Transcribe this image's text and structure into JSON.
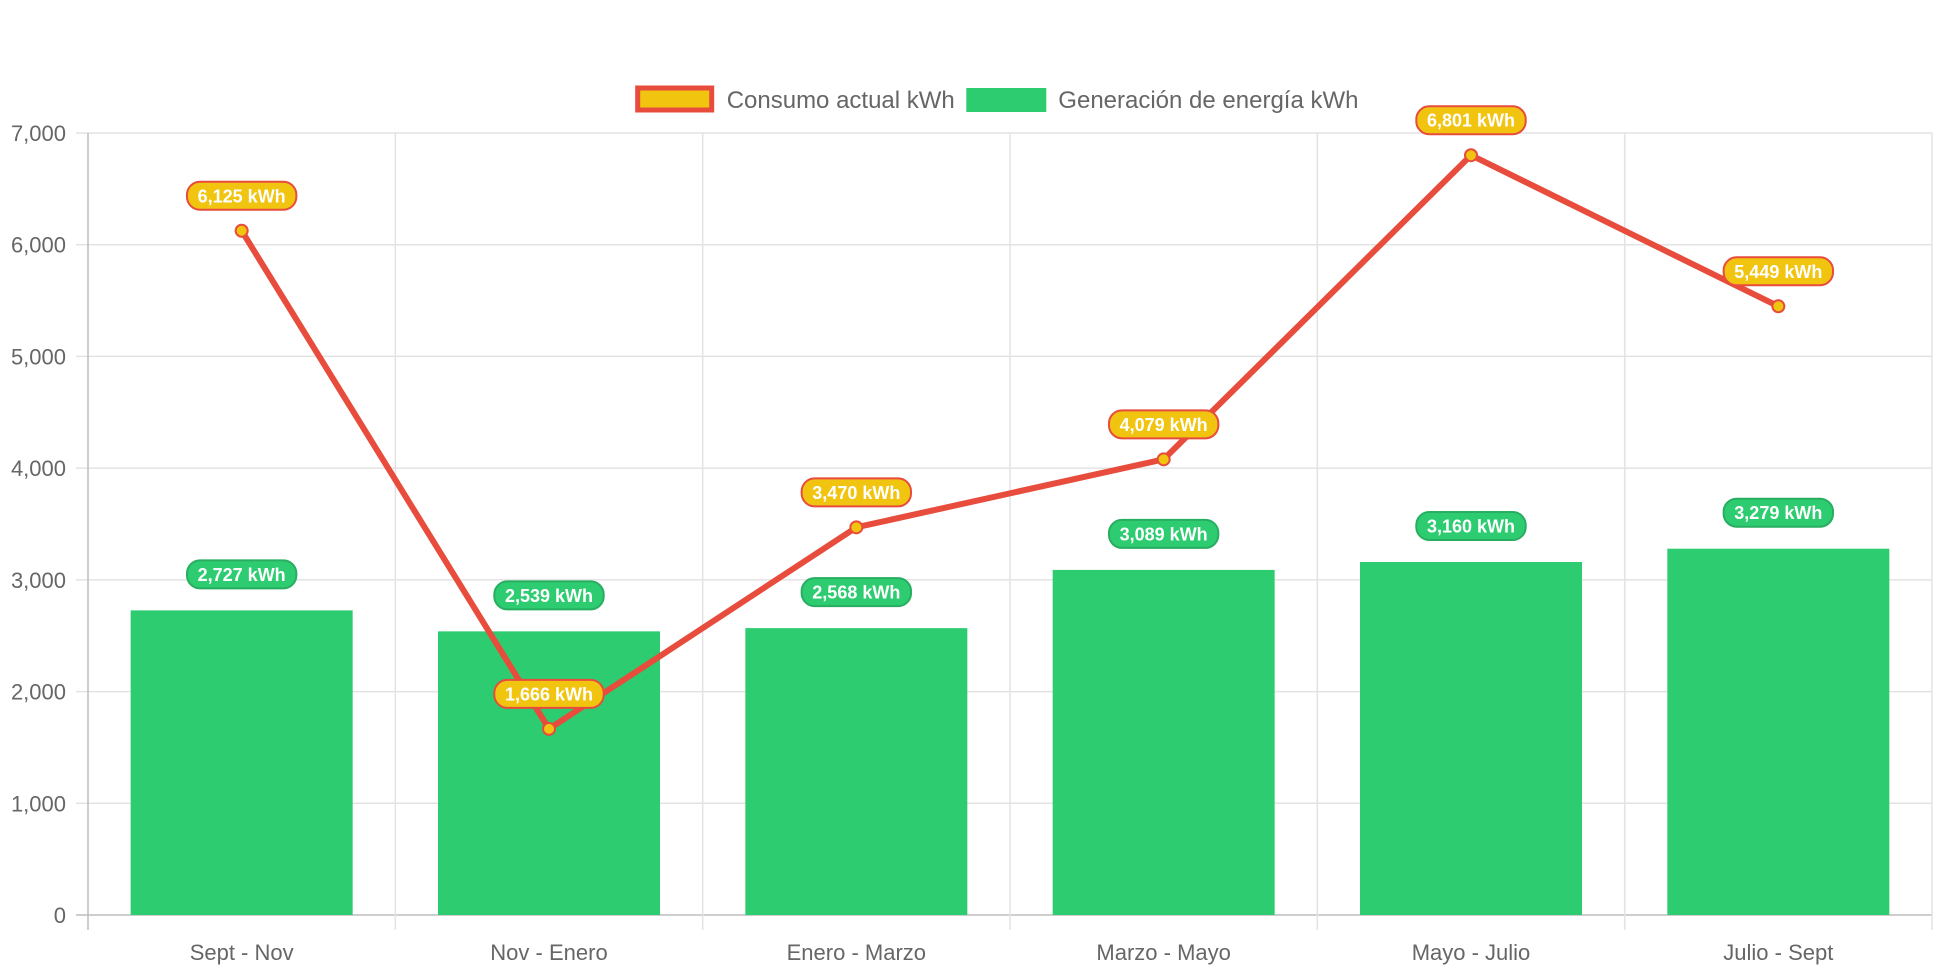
{
  "chart_data": {
    "type": "bar",
    "title": "",
    "xlabel": "",
    "ylabel": "",
    "categories": [
      "Sept - Nov",
      "Nov - Enero",
      "Enero - Marzo",
      "Marzo - Mayo",
      "Mayo - Julio",
      "Julio - Sept"
    ],
    "ylim": [
      0,
      7000
    ],
    "yticks": [
      0,
      1000,
      2000,
      3000,
      4000,
      5000,
      6000,
      7000
    ],
    "ytick_labels": [
      "0",
      "1,000",
      "2,000",
      "3,000",
      "4,000",
      "5,000",
      "6,000",
      "7,000"
    ],
    "grid": true,
    "legend_position": "top",
    "series": [
      {
        "name": "Consumo actual kWh",
        "type": "line",
        "values": [
          6125,
          1666,
          3470,
          4079,
          6801,
          5449
        ],
        "labels": [
          "6,125 kWh",
          "1,666 kWh",
          "3,470 kWh",
          "4,079 kWh",
          "6,801 kWh",
          "5,449 kWh"
        ],
        "line_color": "#e74c3c",
        "fill_color": "#f1c40f"
      },
      {
        "name": "Generación de energía kWh",
        "type": "bar",
        "values": [
          2727,
          2539,
          2568,
          3089,
          3160,
          3279
        ],
        "labels": [
          "2,727 kWh",
          "2,539 kWh",
          "2,568 kWh",
          "3,089 kWh",
          "3,160 kWh",
          "3,279 kWh"
        ],
        "color": "#2ecc71",
        "border_color": "#27ae60"
      }
    ]
  }
}
